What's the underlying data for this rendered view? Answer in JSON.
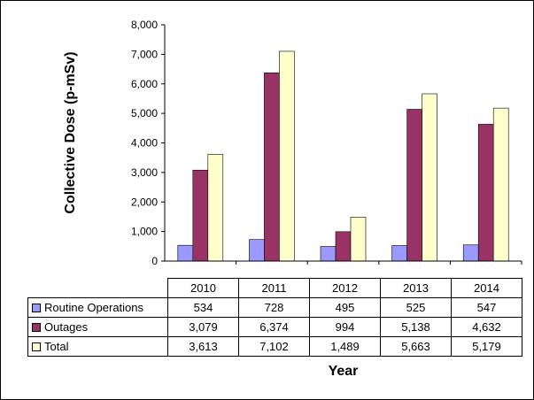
{
  "chart_data": {
    "type": "bar",
    "categories": [
      "2010",
      "2011",
      "2012",
      "2013",
      "2014"
    ],
    "series": [
      {
        "name": "Routine Operations",
        "values": [
          534,
          728,
          495,
          525,
          547
        ],
        "display": [
          "534",
          "728",
          "495",
          "525",
          "547"
        ],
        "color": "#9999ff"
      },
      {
        "name": "Outages",
        "values": [
          3079,
          6374,
          994,
          5138,
          4632
        ],
        "display": [
          "3,079",
          "6,374",
          "994",
          "5,138",
          "4,632"
        ],
        "color": "#993366"
      },
      {
        "name": "Total",
        "values": [
          3613,
          7102,
          1489,
          5663,
          5179
        ],
        "display": [
          "3,613",
          "7,102",
          "1,489",
          "5,663",
          "5,179"
        ],
        "color": "#ffffcc"
      }
    ],
    "ylabel": "Collective Dose (p-mSv)",
    "xlabel": "Year",
    "ylim": [
      0,
      8000
    ],
    "yticks": [
      0,
      1000,
      2000,
      3000,
      4000,
      5000,
      6000,
      7000,
      8000
    ],
    "ytick_labels": [
      "0",
      "1,000",
      "2,000",
      "3,000",
      "4,000",
      "5,000",
      "6,000",
      "7,000",
      "8,000"
    ],
    "grid": false,
    "legend": "data table below chart"
  }
}
